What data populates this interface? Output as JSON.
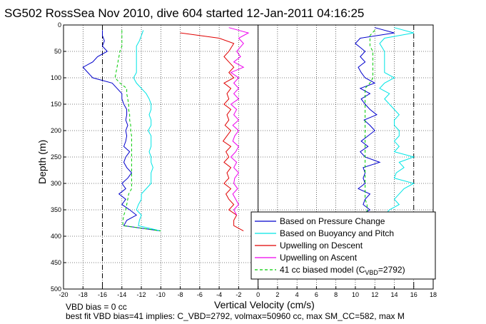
{
  "chart_data": {
    "type": "line",
    "title": "SG502 RossSea Nov 2010, dive 604 started 12-Jan-2011 04:16:25",
    "xlabel": "Vertical Velocity (cm/s)",
    "ylabel": "Depth (m)",
    "xlim": [
      -20,
      18
    ],
    "ylim": [
      500,
      0
    ],
    "x_ticks": [
      "-20",
      "-18",
      "-16",
      "-14",
      "-12",
      "-10",
      "-8",
      "-6",
      "-4",
      "-2",
      "0",
      "2",
      "4",
      "6",
      "8",
      "10",
      "12",
      "14",
      "16",
      "18"
    ],
    "y_ticks": [
      "0",
      "50",
      "100",
      "150",
      "200",
      "250",
      "300",
      "350",
      "400",
      "450",
      "500"
    ],
    "grid": true,
    "legend_position": "bottom-right",
    "legend": [
      {
        "label": "Based on Pressure Change",
        "color": "#0000cc",
        "style": "solid"
      },
      {
        "label": "Based on Buoyancy and Pitch",
        "color": "#00e5e5",
        "style": "solid"
      },
      {
        "label": "Upwelling on Descent",
        "color": "#e00000",
        "style": "solid"
      },
      {
        "label": "Upwelling on Ascent",
        "color": "#ee00ee",
        "style": "solid"
      },
      {
        "label": "41 cc biased model (C",
        "sub": "VBD",
        "label_end": "=2792)",
        "color": "#00cc00",
        "style": "dashed"
      }
    ],
    "ref_lines": {
      "vertical_dashed_x": [
        -16,
        16
      ],
      "vertical_solid_x": [
        0
      ]
    },
    "series": [
      {
        "color": "#0000cc",
        "depth": [
          10,
          20,
          30,
          40,
          50,
          60,
          70,
          80,
          90,
          100,
          110,
          120,
          130,
          140,
          150,
          160,
          170,
          180,
          190,
          200,
          210,
          220,
          230,
          240,
          250,
          260,
          270,
          280,
          290,
          300,
          310,
          320,
          330,
          340,
          350,
          360,
          370,
          380,
          390
        ],
        "values": [
          -16,
          -16,
          -15.8,
          -16,
          -15.5,
          -16.5,
          -17,
          -18,
          -17.5,
          -17,
          -15,
          -14.5,
          -14,
          -14,
          -13.8,
          -13.5,
          -13.5,
          -13.6,
          -13.4,
          -13.6,
          -13.5,
          -13.6,
          -13.8,
          -13.2,
          -13.6,
          -13.8,
          -13.5,
          -13,
          -13.4,
          -14,
          -13.6,
          -14.3,
          -13.6,
          -14,
          -13.2,
          -12.5,
          -13.5,
          -13.8,
          -10
        ]
      },
      {
        "color": "#0000cc",
        "depth": [
          5,
          15,
          25,
          35,
          50,
          60,
          70,
          80,
          90,
          100,
          110,
          120,
          130,
          140,
          150,
          160,
          170,
          180,
          190,
          200,
          210,
          220,
          230,
          240,
          250,
          260,
          270,
          280,
          290,
          300,
          310,
          320,
          330,
          340,
          350,
          360
        ],
        "values": [
          12,
          14,
          10.5,
          10,
          11,
          10.5,
          11,
          10.3,
          10.6,
          11,
          12,
          10.5,
          11.5,
          10.6,
          11,
          11.5,
          12.2,
          10.9,
          11.5,
          12,
          11.3,
          10.6,
          11.3,
          10.5,
          11,
          12.5,
          10.8,
          11,
          10.8,
          11,
          10.3,
          11.5,
          11,
          10.8,
          11.5,
          10.5
        ]
      },
      {
        "color": "#00e5e5",
        "depth": [
          10,
          20,
          30,
          40,
          50,
          60,
          70,
          80,
          90,
          100,
          110,
          120,
          130,
          140,
          150,
          160,
          170,
          180,
          190,
          200,
          210,
          220,
          230,
          240,
          250,
          260,
          270,
          280,
          290,
          300,
          310,
          320,
          330,
          340,
          350,
          360,
          370,
          380,
          390
        ],
        "values": [
          -11.8,
          -12,
          -12.2,
          -12.5,
          -12.5,
          -12.5,
          -12.5,
          -12.5,
          -12.5,
          -12.8,
          -12.5,
          -12,
          -11.5,
          -11.2,
          -11,
          -11,
          -11.2,
          -11,
          -11,
          -11.3,
          -11,
          -11,
          -11,
          -11.2,
          -11,
          -11,
          -10.8,
          -11,
          -11,
          -11,
          -11.5,
          -12,
          -12,
          -12.3,
          -12.5,
          -12,
          -12.2,
          -12.3,
          -10
        ]
      },
      {
        "color": "#00e5e5",
        "depth": [
          5,
          15,
          25,
          35,
          50,
          60,
          70,
          80,
          90,
          100,
          110,
          120,
          130,
          140,
          150,
          160,
          170,
          180,
          190,
          200,
          210,
          220,
          230,
          240,
          250,
          260,
          270,
          280,
          290,
          300,
          310,
          320,
          330,
          340,
          350,
          360
        ],
        "values": [
          14,
          16,
          13,
          12.5,
          13,
          13,
          13,
          13,
          13,
          14,
          13,
          12.5,
          13.5,
          13,
          13.5,
          14,
          14.5,
          14,
          14,
          14.5,
          14.5,
          14,
          14.5,
          14,
          16,
          14.5,
          15,
          14.2,
          14,
          16,
          15,
          14.5,
          14,
          14.5,
          13.5,
          13
        ]
      },
      {
        "color": "#e00000",
        "depth": [
          15,
          25,
          35,
          50,
          60,
          70,
          80,
          90,
          100,
          110,
          120,
          130,
          140,
          150,
          160,
          170,
          180,
          190,
          200,
          210,
          220,
          230,
          240,
          250,
          260,
          270,
          280,
          290,
          300,
          310,
          320,
          330,
          340,
          350,
          360,
          370,
          380,
          390
        ],
        "values": [
          -8,
          -4,
          -2.5,
          -3,
          -3.5,
          -3,
          -2.5,
          -3,
          -2.5,
          -3.5,
          -2.8,
          -3.2,
          -3,
          -3.5,
          -2.8,
          -3.2,
          -3,
          -3.4,
          -2.8,
          -3.2,
          -3.6,
          -2.8,
          -3.3,
          -3,
          -3.5,
          -2.8,
          -3.2,
          -3,
          -3.5,
          -2.8,
          -3.3,
          -3,
          -2.5,
          -3,
          -2.2,
          -2.5,
          -2.5,
          -1.5
        ]
      },
      {
        "color": "#ee00ee",
        "depth": [
          5,
          15,
          25,
          35,
          50,
          60,
          70,
          80,
          90,
          100,
          110,
          120,
          130,
          140,
          150,
          160,
          170,
          180,
          190,
          200,
          210,
          220,
          230,
          240,
          250,
          260,
          270,
          280,
          290,
          300,
          310,
          320,
          330,
          340,
          350,
          360
        ],
        "values": [
          -3,
          -1,
          -2,
          -1.5,
          -2.2,
          -1.8,
          -2.5,
          -1.5,
          -2.8,
          -2,
          -2.5,
          -2,
          -2.5,
          -2,
          -2.8,
          -2.2,
          -2.5,
          -2,
          -2.6,
          -2,
          -2.4,
          -2.6,
          -2,
          -2.3,
          -2.8,
          -2.2,
          -2.5,
          -2,
          -2.4,
          -2.5,
          -2.1,
          -2.6,
          -2.3,
          -2,
          -2.5,
          -2.2
        ]
      },
      {
        "color": "#00cc00",
        "dashed": true,
        "depth": [
          10,
          20,
          30,
          40,
          50,
          60,
          70,
          80,
          90,
          100,
          110,
          120,
          130,
          140,
          150,
          160,
          170,
          180,
          190,
          200,
          210,
          220,
          230,
          240,
          250,
          260,
          270,
          280,
          290,
          300,
          310,
          320,
          330,
          340,
          350,
          360,
          370,
          380,
          390
        ],
        "values": [
          -14,
          -14,
          -14,
          -14,
          -14.2,
          -14.3,
          -14.4,
          -14.5,
          -14.6,
          -14.7,
          -14.2,
          -13.5,
          -13.5,
          -13.4,
          -13.3,
          -13.3,
          -13.2,
          -13.2,
          -13.1,
          -13.1,
          -13,
          -13,
          -13,
          -13,
          -13,
          -13,
          -13,
          -13,
          -13,
          -13,
          -13,
          -13.3,
          -13.4,
          -13.5,
          -13.6,
          -13.8,
          -13.9,
          -13.9,
          -10
        ]
      },
      {
        "color": "#00cc00",
        "dashed": true,
        "depth": [
          10,
          20,
          30,
          40,
          50,
          60,
          70,
          80,
          90,
          100,
          110,
          120,
          130,
          140,
          150,
          160,
          170,
          180,
          190,
          200,
          210,
          220,
          230,
          240,
          250,
          260,
          270,
          280,
          290,
          300,
          310,
          320,
          330,
          340,
          350,
          360
        ],
        "values": [
          12,
          11.5,
          11.5,
          11.5,
          11.8,
          11.8,
          11.8,
          11.8,
          11.8,
          11.8,
          11.5,
          11,
          11,
          11,
          11,
          11,
          11,
          11,
          11,
          11,
          11,
          11,
          11,
          11,
          11,
          11,
          11,
          11,
          11,
          11,
          11,
          11,
          11,
          11.2,
          11.2,
          11.2
        ]
      }
    ]
  },
  "notes": {
    "line1": "VBD bias = 0 cc",
    "line2": "best fit VBD bias=41 implies: C_VBD=2792, volmax=50960 cc, max SM_CC=582, max M"
  }
}
